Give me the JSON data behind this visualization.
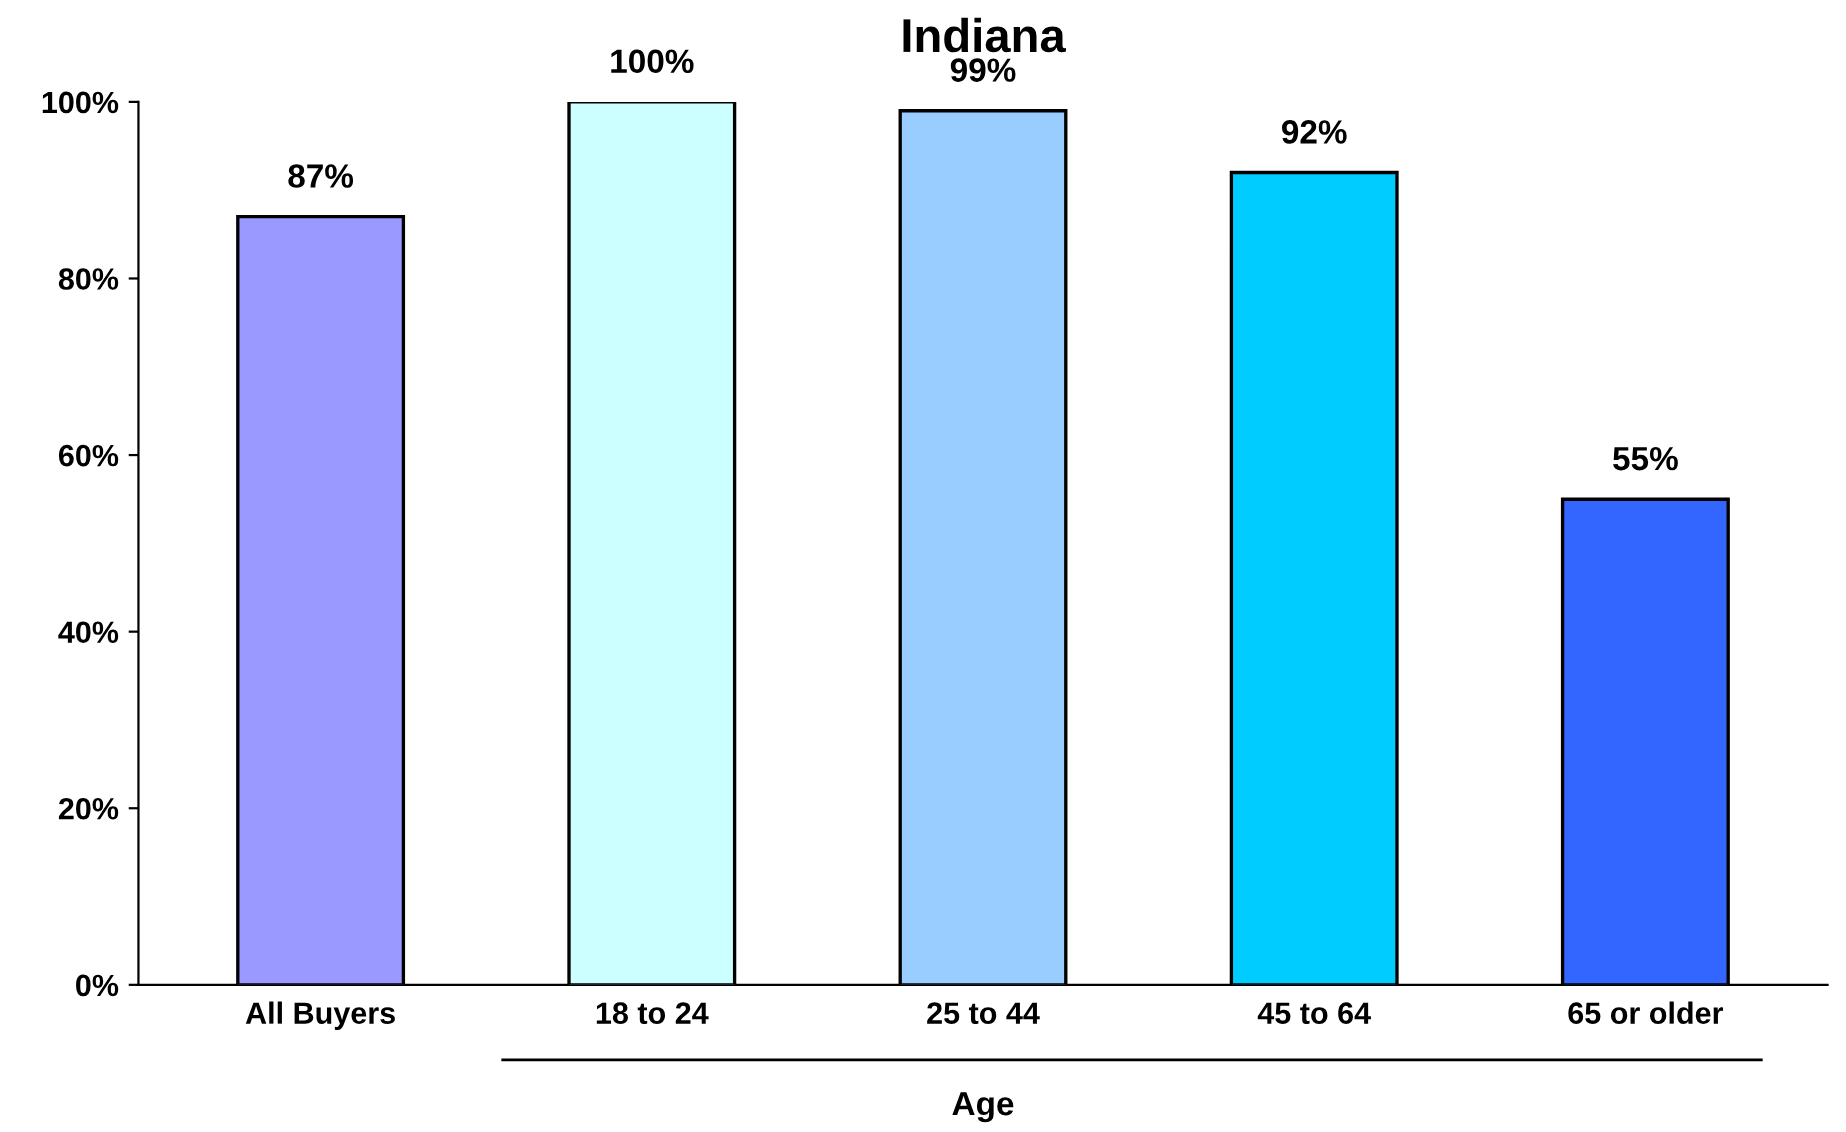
{
  "chart_data": {
    "type": "bar",
    "title": "Indiana",
    "xlabel": "Age",
    "categories": [
      "All Buyers",
      "18 to 24",
      "25 to 44",
      "45 to 64",
      "65 or older"
    ],
    "values": [
      87,
      100,
      99,
      92,
      55
    ],
    "value_labels": [
      "87%",
      "100%",
      "99%",
      "92%",
      "55%"
    ],
    "colors": [
      "#9999ff",
      "#ccffff",
      "#99ccff",
      "#00ccff",
      "#3366ff"
    ],
    "ylim": [
      0,
      100
    ],
    "yticks": [
      {
        "value": 0,
        "label": "0%"
      },
      {
        "value": 20,
        "label": "20%"
      },
      {
        "value": 40,
        "label": "40%"
      },
      {
        "value": 60,
        "label": "60%"
      },
      {
        "value": 80,
        "label": "80%"
      },
      {
        "value": 100,
        "label": "100%"
      }
    ],
    "grid": false,
    "legend": false
  }
}
